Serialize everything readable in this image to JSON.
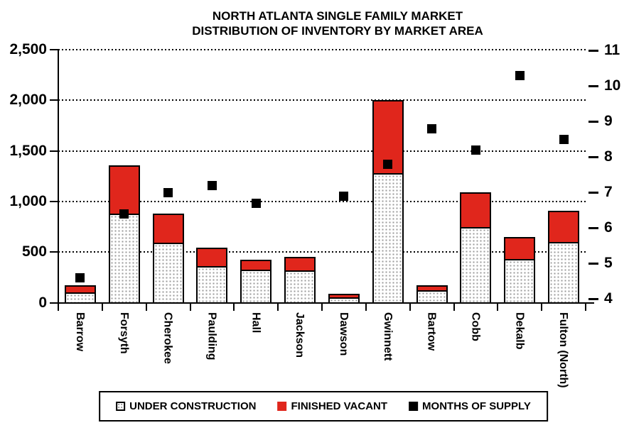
{
  "title": {
    "line1": "NORTH ATLANTA SINGLE FAMILY MARKET",
    "line2": "DISTRIBUTION OF INVENTORY BY MARKET AREA"
  },
  "colors": {
    "finished_vacant": "#e0261c",
    "months_of_supply_marker": "#000000",
    "under_construction_fill": "#ffffff",
    "under_construction_dots": "#9a9a9a",
    "axis": "#000000",
    "background": "#ffffff"
  },
  "legend": {
    "items": [
      {
        "label": "UNDER CONSTRUCTION",
        "swatch": "dotted-pattern-square"
      },
      {
        "label": "FINISHED VACANT",
        "swatch": "red-square"
      },
      {
        "label": "MONTHS OF SUPPLY",
        "swatch": "black-square"
      }
    ]
  },
  "chart_data": {
    "type": "bar",
    "subtype": "stacked-bar-with-scatter-overlay",
    "title": "NORTH ATLANTA SINGLE FAMILY MARKET DISTRIBUTION OF INVENTORY BY MARKET AREA",
    "categories": [
      "Barrow",
      "Forsyth",
      "Cherokee",
      "Paulding",
      "Hall",
      "Jackson",
      "Dawson",
      "Gwinnett",
      "Bartow",
      "Cobb",
      "Dekalb",
      "Fulton (North)"
    ],
    "series": [
      {
        "name": "UNDER CONSTRUCTION",
        "type": "bar",
        "stack": "inventory",
        "axis": "left",
        "values": [
          100,
          880,
          590,
          360,
          325,
          320,
          55,
          1280,
          120,
          750,
          430,
          600
        ]
      },
      {
        "name": "FINISHED VACANT",
        "type": "bar",
        "stack": "inventory",
        "axis": "left",
        "values": [
          70,
          480,
          290,
          180,
          100,
          130,
          30,
          720,
          55,
          340,
          220,
          310
        ]
      },
      {
        "name": "MONTHS OF SUPPLY",
        "type": "scatter",
        "axis": "right",
        "values": [
          4.6,
          6.4,
          7.0,
          7.2,
          6.7,
          null,
          6.9,
          7.8,
          8.8,
          8.2,
          10.3,
          8.5
        ]
      }
    ],
    "left_axis": {
      "min": 0,
      "max": 2500,
      "tick_values": [
        0,
        500,
        1000,
        1500,
        2000,
        2500
      ],
      "tick_labels": [
        "0",
        "500",
        "1,000",
        "1,500",
        "2,000",
        "2,500"
      ]
    },
    "right_axis": {
      "min": 4,
      "max": 11,
      "tick_values": [
        4,
        5,
        6,
        7,
        8,
        9,
        10,
        11
      ],
      "tick_labels": [
        "4",
        "5",
        "6",
        "7",
        "8",
        "9",
        "10",
        "11"
      ]
    },
    "grid": true,
    "gridline_style": "dotted",
    "legend_position": "bottom"
  }
}
